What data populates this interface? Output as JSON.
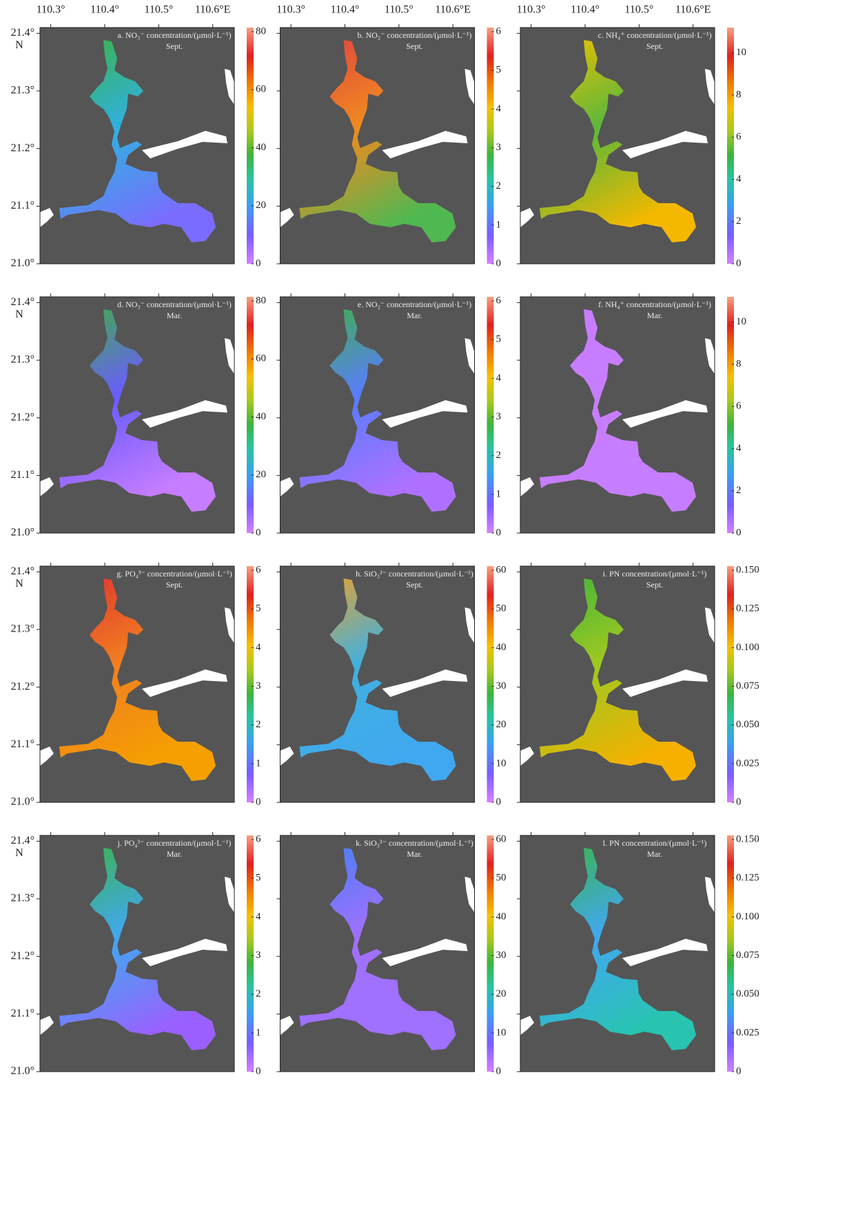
{
  "map_axes": {
    "xlim": [
      110.28,
      110.64
    ],
    "ylim": [
      21.0,
      21.41
    ],
    "xticks": [
      {
        "value": 110.3,
        "label": "110.3°"
      },
      {
        "value": 110.4,
        "label": "110.4°"
      },
      {
        "value": 110.5,
        "label": "110.5°"
      },
      {
        "value": 110.6,
        "label": "110.6°E"
      }
    ],
    "yticks": [
      {
        "value": 21.0,
        "label": "21.0°"
      },
      {
        "value": 21.1,
        "label": "21.1°"
      },
      {
        "value": 21.2,
        "label": "21.2°"
      },
      {
        "value": 21.3,
        "label": "21.3°"
      },
      {
        "value": 21.4,
        "label": "21.4°"
      }
    ],
    "ylabel": "N"
  },
  "panels": [
    {
      "title": "a. NO₃⁻ concentration/(μmol·L⁻¹)",
      "season": "Sept.",
      "colorbar": {
        "lim": [
          0,
          80
        ],
        "ticks": [
          0,
          20,
          40,
          60,
          80
        ]
      },
      "colors": [
        "#3cb43c",
        "#30b0e0",
        "#7a6cff"
      ]
    },
    {
      "title": "b. NO₂⁻ concentration/(μmol·L⁻¹)",
      "season": "Sept.",
      "colorbar": {
        "lim": [
          0,
          6
        ],
        "ticks": [
          0,
          1,
          2,
          3,
          4,
          5,
          6
        ]
      },
      "colors": [
        "#e04040",
        "#f08a20",
        "#50b850"
      ]
    },
    {
      "title": "c. NH₄⁺ concentration/(μmol·L⁻¹)",
      "season": "Sept.",
      "colorbar": {
        "lim": [
          0,
          11
        ],
        "ticks": [
          0,
          2,
          4,
          6,
          8,
          10
        ]
      },
      "colors": [
        "#f5c000",
        "#5cb83a",
        "#f5b800"
      ]
    },
    {
      "title": "d. NO₃⁻ concentration/(μmol·L⁻¹)",
      "season": "Mar.",
      "colorbar": {
        "lim": [
          0,
          80
        ],
        "ticks": [
          0,
          20,
          40,
          60,
          80
        ]
      },
      "colors": [
        "#3cb43c",
        "#6a5cff",
        "#c77dff"
      ]
    },
    {
      "title": "e. NO₂⁻ concentration/(μmol·L⁻¹)",
      "season": "Mar.",
      "colorbar": {
        "lim": [
          0,
          6
        ],
        "ticks": [
          0,
          1,
          2,
          3,
          4,
          5,
          6
        ]
      },
      "colors": [
        "#3cb43c",
        "#5a7cff",
        "#b070ff"
      ]
    },
    {
      "title": "f. NH₄⁺ concentration/(μmol·L⁻¹)",
      "season": "Mar.",
      "colorbar": {
        "lim": [
          0,
          11
        ],
        "ticks": [
          0,
          2,
          4,
          6,
          8,
          10
        ]
      },
      "colors": [
        "#c77dff",
        "#c77dff",
        "#c77dff"
      ]
    },
    {
      "title": "g. PO₄³⁻ concentration/(μmol·L⁻¹)",
      "season": "Sept.",
      "colorbar": {
        "lim": [
          0,
          6
        ],
        "ticks": [
          0,
          1,
          2,
          3,
          4,
          5,
          6
        ]
      },
      "colors": [
        "#e03030",
        "#f08020",
        "#f5a000"
      ]
    },
    {
      "title": "h. SiO₃²⁻ concentration/(μmol·L⁻¹)",
      "season": "Sept.",
      "colorbar": {
        "lim": [
          0,
          60
        ],
        "ticks": [
          0,
          10,
          20,
          30,
          40,
          50,
          60
        ]
      },
      "colors": [
        "#f5a020",
        "#40b0e0",
        "#40a8f0"
      ]
    },
    {
      "title": "i. PN concentration/(μmol·L⁻¹)",
      "season": "Sept.",
      "colorbar": {
        "lim": [
          0,
          0.15
        ],
        "ticks": [
          0,
          0.025,
          {
            "value": 0.05,
            "label": "0.050"
          },
          0.075,
          {
            "value": 0.1,
            "label": "0.100"
          },
          0.125,
          {
            "value": 0.15,
            "label": "0.150"
          }
        ]
      },
      "colors": [
        "#3cb43c",
        "#a0c820",
        "#f5b000"
      ]
    },
    {
      "title": "j. PO₄³⁻ concentration/(μmol·L⁻¹)",
      "season": "Mar.",
      "colorbar": {
        "lim": [
          0,
          6
        ],
        "ticks": [
          0,
          1,
          2,
          3,
          4,
          5,
          6
        ]
      },
      "colors": [
        "#3cb43c",
        "#40a8f0",
        "#9a60ff"
      ]
    },
    {
      "title": "k. SiO₃²⁻ concentration/(μmol·L⁻¹)",
      "season": "Mar.",
      "colorbar": {
        "lim": [
          0,
          60
        ],
        "ticks": [
          0,
          10,
          20,
          30,
          40,
          50,
          60
        ]
      },
      "colors": [
        "#4080f0",
        "#a070ff",
        "#a070ff"
      ]
    },
    {
      "title": "l. PN concentration/(μmol·L⁻¹)",
      "season": "Mar.",
      "colorbar": {
        "lim": [
          0,
          0.15
        ],
        "ticks": [
          0,
          0.025,
          {
            "value": 0.05,
            "label": "0.050"
          },
          0.075,
          {
            "value": 0.1,
            "label": "0.100"
          },
          0.125,
          {
            "value": 0.15,
            "label": "0.150"
          }
        ]
      },
      "colors": [
        "#3cb43c",
        "#40a8f0",
        "#28c4b0"
      ]
    }
  ]
}
